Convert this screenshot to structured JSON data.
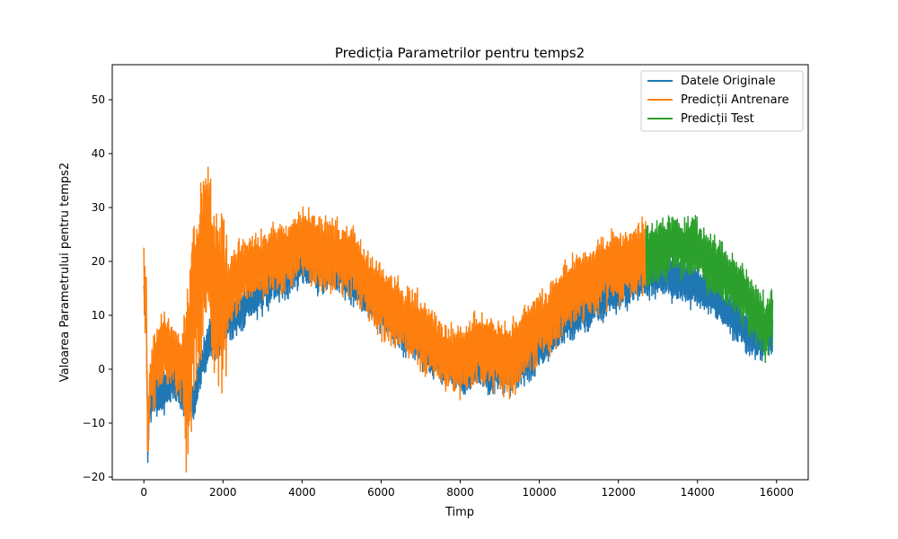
{
  "chart_data": {
    "type": "line",
    "title": "Predicția Parametrilor pentru temps2",
    "xlabel": "Timp",
    "ylabel": "Valoarea Parametrului pentru temps2",
    "xlim": [
      -800,
      16800
    ],
    "ylim": [
      -20.5,
      56.5
    ],
    "xticks": [
      0,
      2000,
      4000,
      6000,
      8000,
      10000,
      12000,
      14000,
      16000
    ],
    "yticks": [
      -20,
      -10,
      0,
      10,
      20,
      30,
      40,
      50
    ],
    "grid": false,
    "legend_position": "top-right",
    "series": [
      {
        "name": "Datele Originale",
        "color": "#1f77b4",
        "x": [
          0,
          60,
          100,
          150,
          300,
          500,
          700,
          900,
          1100,
          1250,
          1350,
          1500,
          1600,
          1700,
          1800,
          1900,
          2000,
          2200,
          2500,
          2800,
          3000,
          3300,
          3600,
          4000,
          4400,
          4800,
          5200,
          5500,
          5800,
          6100,
          6500,
          6900,
          7300,
          7600,
          8000,
          8400,
          8800,
          9200,
          9500,
          9800,
          10200,
          10600,
          11000,
          11400,
          11800,
          12200,
          12700,
          13200,
          13600,
          14000,
          14400,
          14800,
          15200,
          15500,
          15900
        ],
        "y": [
          15,
          12,
          -15,
          -5,
          -3,
          -4,
          -1,
          -3,
          -5,
          -6,
          -2,
          2,
          5,
          7,
          6,
          8,
          9,
          10,
          12,
          14,
          15,
          17,
          18,
          20,
          19,
          19,
          17,
          15,
          13,
          11,
          8,
          6,
          3,
          2,
          0,
          1,
          0,
          0,
          1,
          3,
          6,
          9,
          11,
          13,
          15,
          16,
          18,
          18,
          17,
          16,
          14,
          11,
          8,
          6,
          8
        ]
      },
      {
        "name": "Predicții Antrenare",
        "color": "#ff7f0e",
        "x": [
          0,
          60,
          100,
          150,
          300,
          500,
          700,
          900,
          1100,
          1250,
          1350,
          1500,
          1600,
          1700,
          1800,
          1900,
          2000,
          2200,
          2500,
          2800,
          3000,
          3300,
          3600,
          4000,
          4400,
          4800,
          5200,
          5500,
          5800,
          6100,
          6500,
          6900,
          7300,
          7600,
          8000,
          8400,
          8800,
          9200,
          9500,
          9800,
          10200,
          10600,
          11000,
          11400,
          11800,
          12200,
          12700
        ],
        "y": [
          17,
          13,
          -14,
          -2,
          2,
          6,
          4,
          2,
          1,
          14,
          19,
          24,
          27,
          22,
          15,
          17,
          14,
          16,
          19,
          20,
          20,
          22,
          22,
          25,
          23,
          22,
          22,
          18,
          16,
          13,
          11,
          9,
          6,
          3,
          3,
          5,
          4,
          3,
          5,
          8,
          10,
          14,
          17,
          18,
          20,
          21,
          22
        ]
      },
      {
        "name": "Predicții Test",
        "color": "#2ca02c",
        "x": [
          12700,
          13000,
          13300,
          13600,
          13900,
          14200,
          14500,
          14800,
          15100,
          15400,
          15700,
          15900
        ],
        "y": [
          22,
          23,
          24,
          23,
          24,
          21,
          20,
          18,
          15,
          12,
          9,
          10
        ]
      }
    ]
  }
}
